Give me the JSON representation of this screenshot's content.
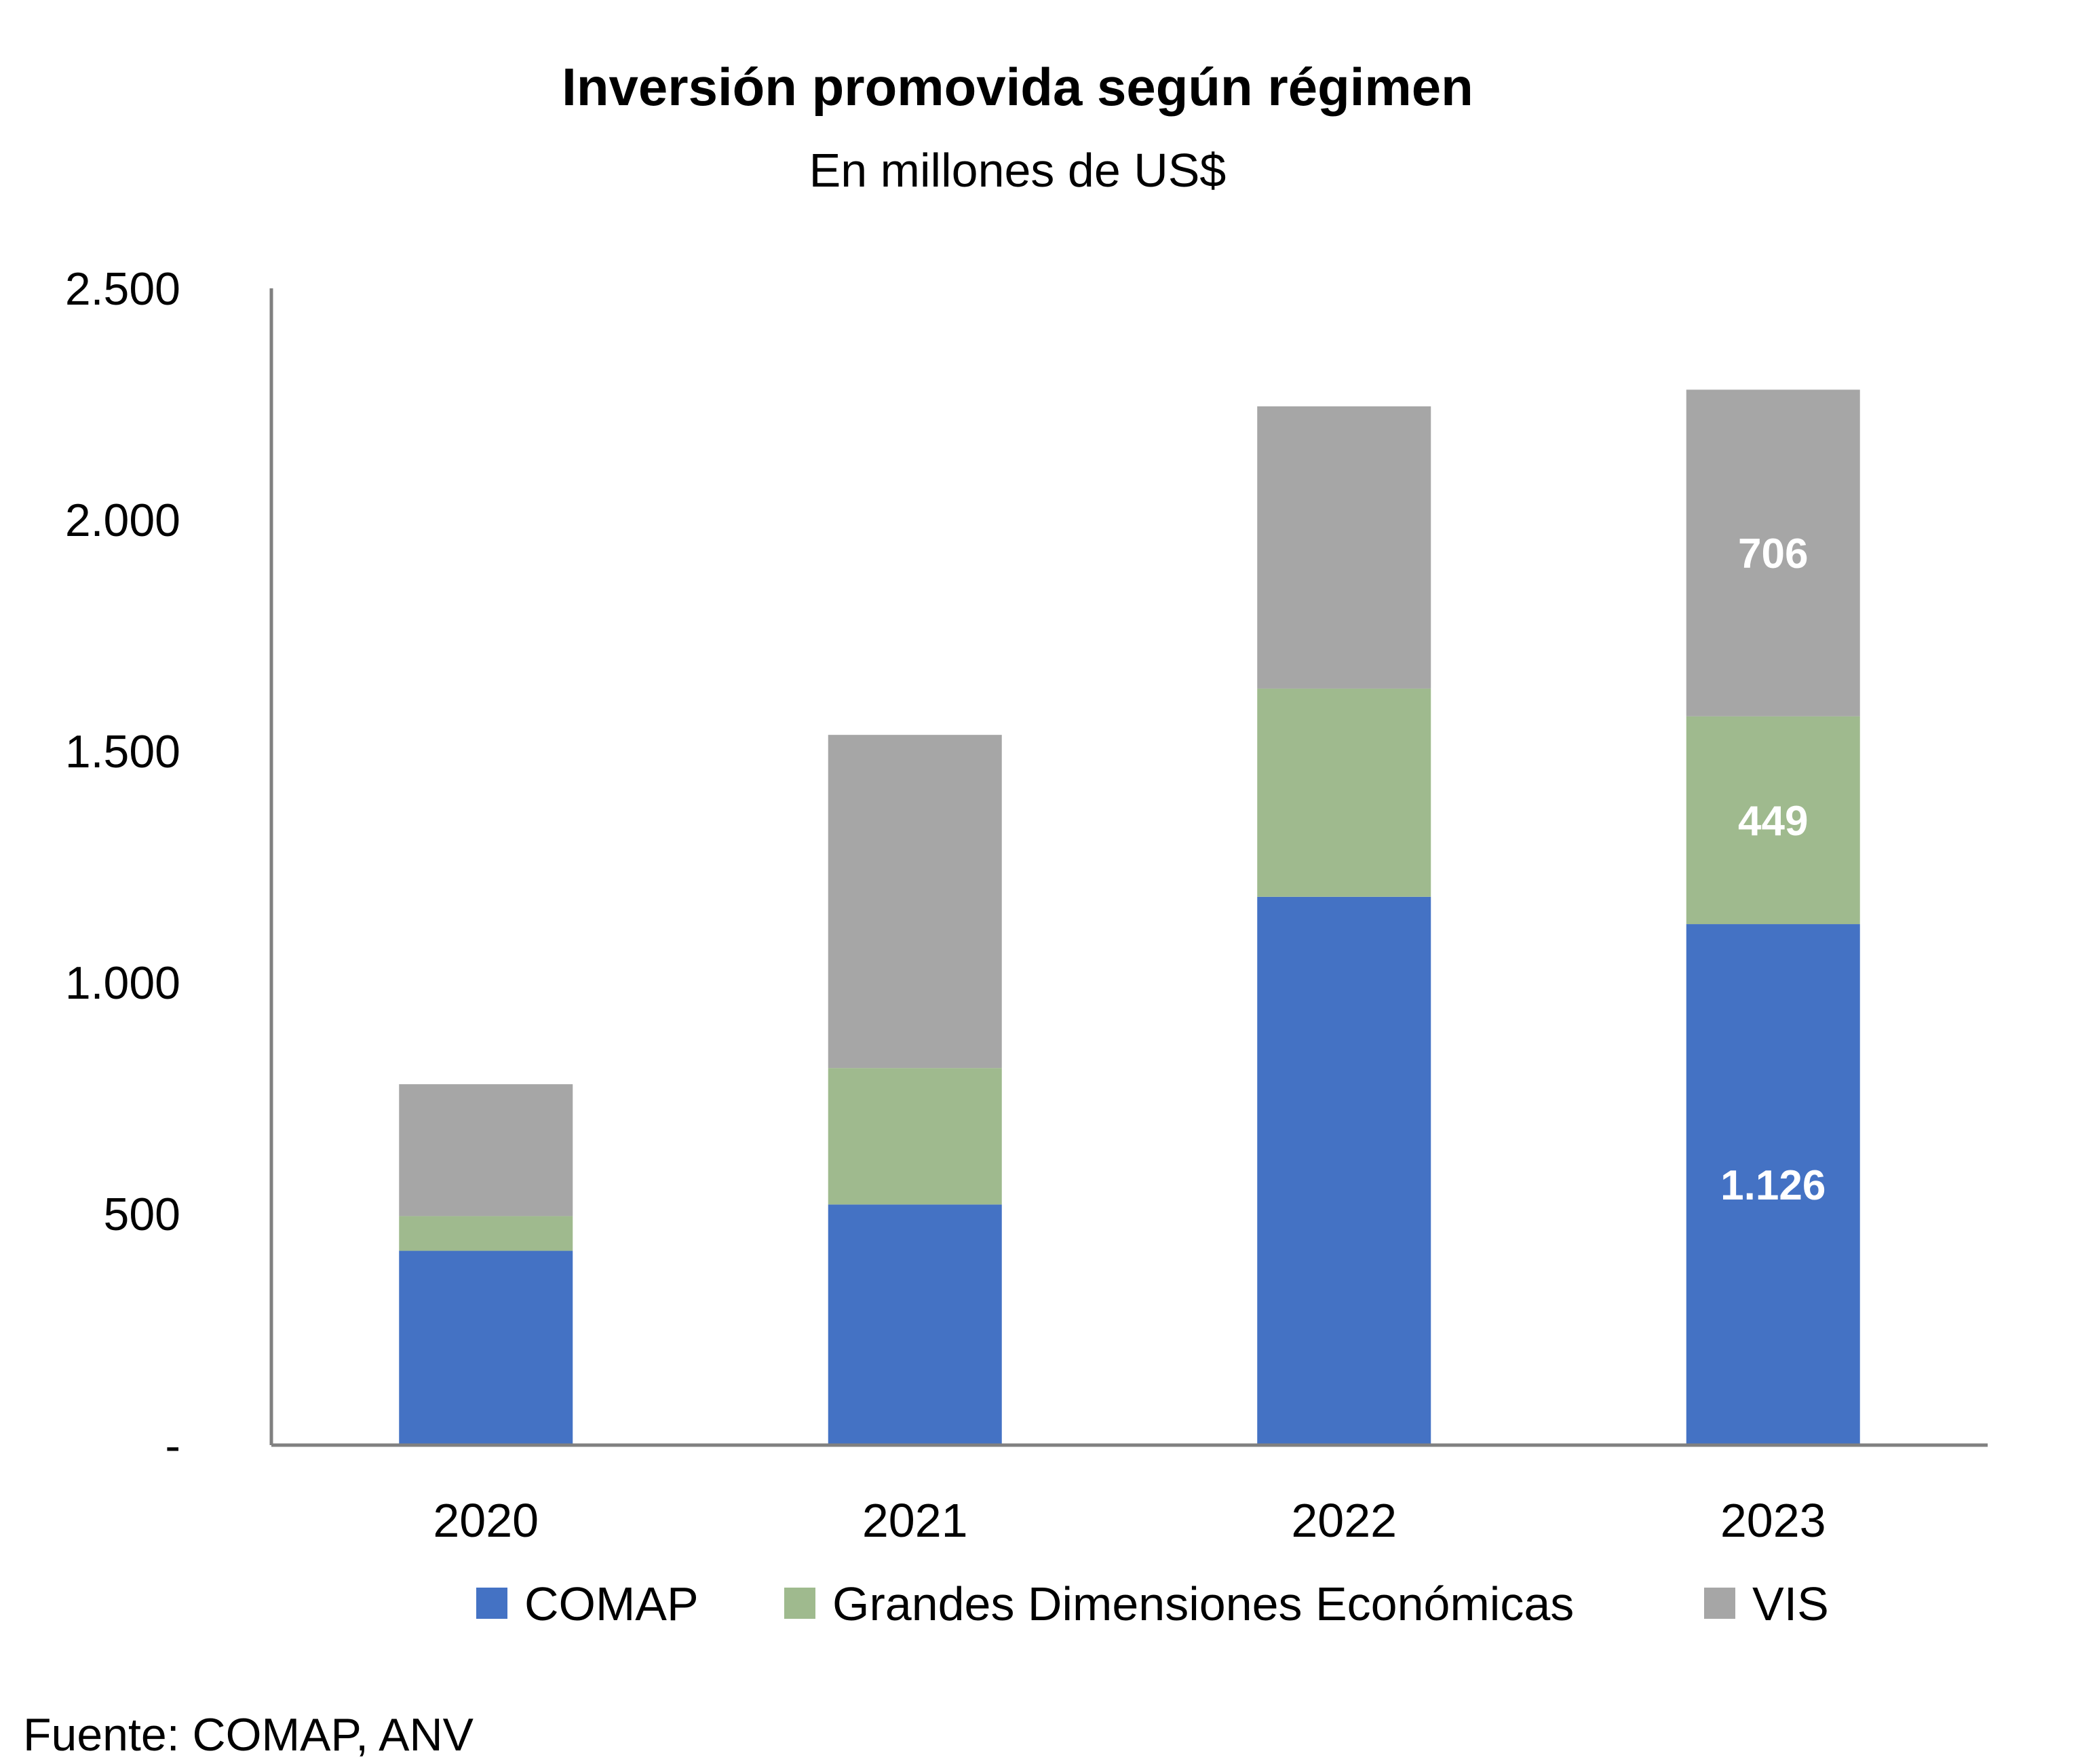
{
  "chart_data": {
    "type": "bar",
    "stacked": true,
    "title": "Inversión promovida según régimen",
    "subtitle": "En millones de US$",
    "categories": [
      "2020",
      "2021",
      "2022",
      "2023"
    ],
    "series": [
      {
        "name": "COMAP",
        "color": "#4472C4",
        "values": [
          420,
          520,
          1185,
          1126
        ]
      },
      {
        "name": "Grandes Dimensiones Económicas",
        "color": "#9FBA8E",
        "values": [
          75,
          295,
          450,
          449
        ]
      },
      {
        "name": "VIS",
        "color": "#A6A6A6",
        "values": [
          285,
          720,
          610,
          706
        ]
      }
    ],
    "data_labels": [
      {
        "series": 0,
        "category": 3,
        "text": "1.126"
      },
      {
        "series": 1,
        "category": 3,
        "text": "449"
      },
      {
        "series": 2,
        "category": 3,
        "text": "706"
      }
    ],
    "ylim": [
      0,
      2500
    ],
    "yticks": [
      0,
      500,
      1000,
      1500,
      2000,
      2500
    ],
    "ytick_labels": [
      "-",
      "500",
      "1.000",
      "1.500",
      "2.000",
      "2.500"
    ],
    "grid": false,
    "legend": "bottom",
    "source": "Fuente: COMAP, ANV"
  }
}
